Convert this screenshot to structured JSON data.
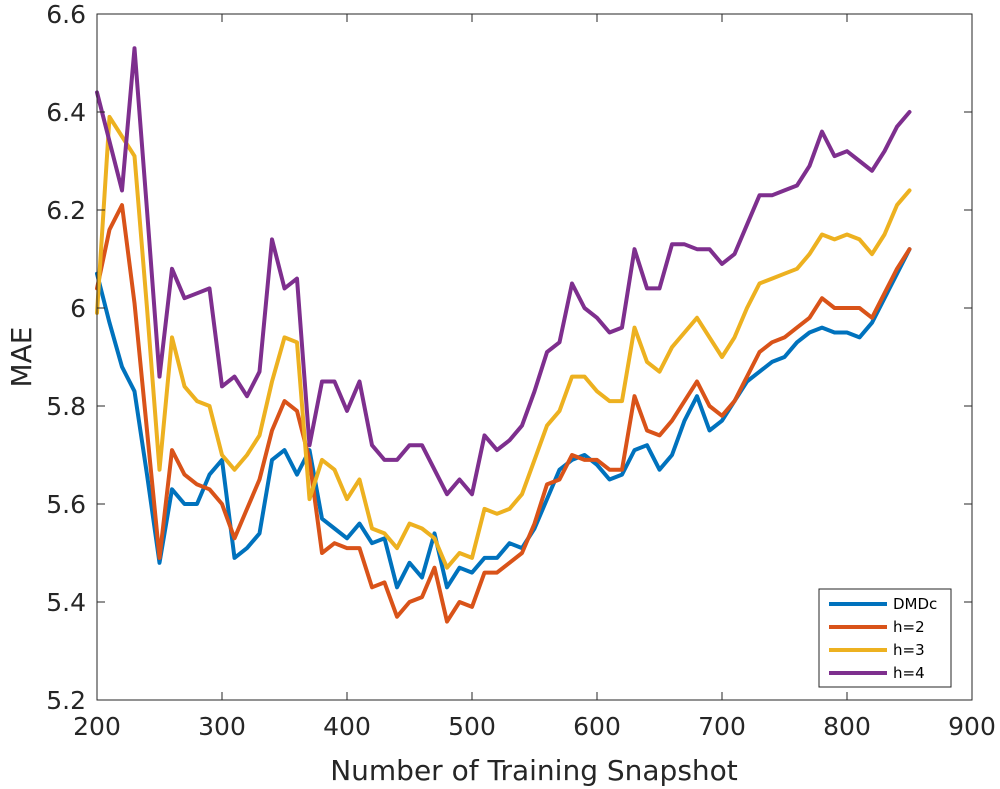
{
  "chart_data": {
    "type": "line",
    "title": "",
    "xlabel": "Number of Training Snapshot",
    "ylabel": "MAE",
    "xlim": [
      200,
      900
    ],
    "ylim": [
      5.2,
      6.6
    ],
    "xticks": [
      200,
      300,
      400,
      500,
      600,
      700,
      800,
      900
    ],
    "yticks": [
      5.2,
      5.4,
      5.6,
      5.8,
      6.0,
      6.2,
      6.4,
      6.6
    ],
    "xtick_labels": [
      "200",
      "300",
      "400",
      "500",
      "600",
      "700",
      "800",
      "900"
    ],
    "ytick_labels": [
      "5.2",
      "5.4",
      "5.6",
      "5.8",
      "6",
      "6.2",
      "6.4",
      "6.6"
    ],
    "grid": false,
    "legend_position": "bottom-right",
    "x": [
      200,
      210,
      220,
      230,
      240,
      250,
      260,
      270,
      280,
      290,
      300,
      310,
      320,
      330,
      340,
      350,
      360,
      370,
      380,
      390,
      400,
      410,
      420,
      430,
      440,
      450,
      460,
      470,
      480,
      490,
      500,
      510,
      520,
      530,
      540,
      550,
      560,
      570,
      580,
      590,
      600,
      610,
      620,
      630,
      640,
      650,
      660,
      670,
      680,
      690,
      700,
      710,
      720,
      730,
      740,
      750,
      760,
      770,
      780,
      790,
      800,
      810,
      820,
      830,
      840,
      850
    ],
    "series": [
      {
        "name": "DMDc",
        "color": "#0072BD",
        "values": [
          6.07,
          5.97,
          5.88,
          5.83,
          5.66,
          5.48,
          5.63,
          5.6,
          5.6,
          5.66,
          5.69,
          5.49,
          5.51,
          5.54,
          5.69,
          5.71,
          5.66,
          5.71,
          5.57,
          5.55,
          5.53,
          5.56,
          5.52,
          5.53,
          5.43,
          5.48,
          5.45,
          5.54,
          5.43,
          5.47,
          5.46,
          5.49,
          5.49,
          5.52,
          5.51,
          5.55,
          5.61,
          5.67,
          5.69,
          5.7,
          5.68,
          5.65,
          5.66,
          5.71,
          5.72,
          5.67,
          5.7,
          5.77,
          5.82,
          5.75,
          5.77,
          5.81,
          5.85,
          5.87,
          5.89,
          5.9,
          5.93,
          5.95,
          5.96,
          5.95,
          5.95,
          5.94,
          5.97,
          6.02,
          6.07,
          6.12
        ]
      },
      {
        "name": "h=2",
        "color": "#D95319",
        "values": [
          6.04,
          6.16,
          6.21,
          6.01,
          5.75,
          5.49,
          5.71,
          5.66,
          5.64,
          5.63,
          5.6,
          5.53,
          5.59,
          5.65,
          5.75,
          5.81,
          5.79,
          5.69,
          5.5,
          5.52,
          5.51,
          5.51,
          5.43,
          5.44,
          5.37,
          5.4,
          5.41,
          5.47,
          5.36,
          5.4,
          5.39,
          5.46,
          5.46,
          5.48,
          5.5,
          5.56,
          5.64,
          5.65,
          5.7,
          5.69,
          5.69,
          5.67,
          5.67,
          5.82,
          5.75,
          5.74,
          5.77,
          5.81,
          5.85,
          5.8,
          5.78,
          5.81,
          5.86,
          5.91,
          5.93,
          5.94,
          5.96,
          5.98,
          6.02,
          6.0,
          6.0,
          6.0,
          5.98,
          6.03,
          6.08,
          6.12
        ]
      },
      {
        "name": "h=3",
        "color": "#EDB120",
        "values": [
          5.99,
          6.39,
          6.35,
          6.31,
          6.0,
          5.67,
          5.94,
          5.84,
          5.81,
          5.8,
          5.7,
          5.67,
          5.7,
          5.74,
          5.85,
          5.94,
          5.93,
          5.61,
          5.69,
          5.67,
          5.61,
          5.65,
          5.55,
          5.54,
          5.51,
          5.56,
          5.55,
          5.53,
          5.47,
          5.5,
          5.49,
          5.59,
          5.58,
          5.59,
          5.62,
          5.69,
          5.76,
          5.79,
          5.86,
          5.86,
          5.83,
          5.81,
          5.81,
          5.96,
          5.89,
          5.87,
          5.92,
          5.95,
          5.98,
          5.94,
          5.9,
          5.94,
          6.0,
          6.05,
          6.06,
          6.07,
          6.08,
          6.11,
          6.15,
          6.14,
          6.15,
          6.14,
          6.11,
          6.15,
          6.21,
          6.24
        ]
      },
      {
        "name": "h=4",
        "color": "#7E2F8E",
        "values": [
          6.44,
          6.34,
          6.24,
          6.53,
          6.2,
          5.86,
          6.08,
          6.02,
          6.03,
          6.04,
          5.84,
          5.86,
          5.82,
          5.87,
          6.14,
          6.04,
          6.06,
          5.72,
          5.85,
          5.85,
          5.79,
          5.85,
          5.72,
          5.69,
          5.69,
          5.72,
          5.72,
          5.67,
          5.62,
          5.65,
          5.62,
          5.74,
          5.71,
          5.73,
          5.76,
          5.83,
          5.91,
          5.93,
          6.05,
          6.0,
          5.98,
          5.95,
          5.96,
          6.12,
          6.04,
          6.04,
          6.13,
          6.13,
          6.12,
          6.12,
          6.09,
          6.11,
          6.17,
          6.23,
          6.23,
          6.24,
          6.25,
          6.29,
          6.36,
          6.31,
          6.32,
          6.3,
          6.28,
          6.32,
          6.37,
          6.4
        ]
      }
    ]
  }
}
